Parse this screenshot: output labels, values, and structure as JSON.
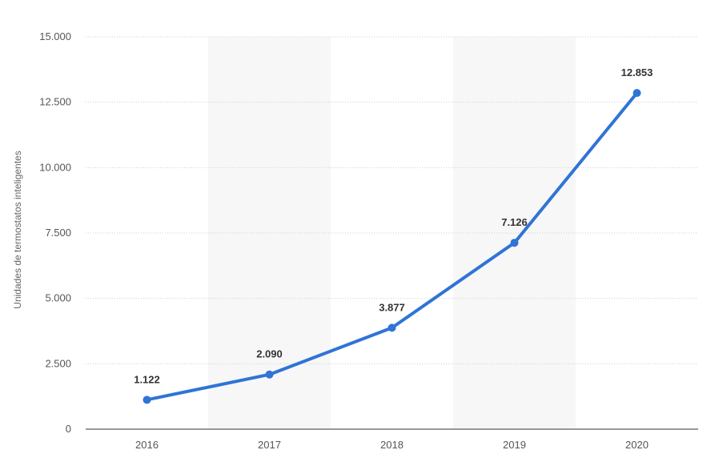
{
  "chart_data": {
    "type": "line",
    "title": "",
    "xlabel": "",
    "ylabel": "Unidades de termostatos inteligentes",
    "categories": [
      "2016",
      "2017",
      "2018",
      "2019",
      "2020"
    ],
    "series": [
      {
        "values": [
          1122,
          2090,
          3877,
          7126,
          12853
        ],
        "labels": [
          "1.122",
          "2.090",
          "3.877",
          "7.126",
          "12.853"
        ],
        "color": "#2f74d6"
      }
    ],
    "ylim": [
      0,
      15000
    ],
    "yticks": [
      0,
      2500,
      5000,
      7500,
      10000,
      12500,
      15000
    ],
    "ytick_labels": [
      "0",
      "2.500",
      "5.000",
      "7.500",
      "10.000",
      "12.500",
      "15.000"
    ],
    "grid": true,
    "alternating_bands": true
  }
}
